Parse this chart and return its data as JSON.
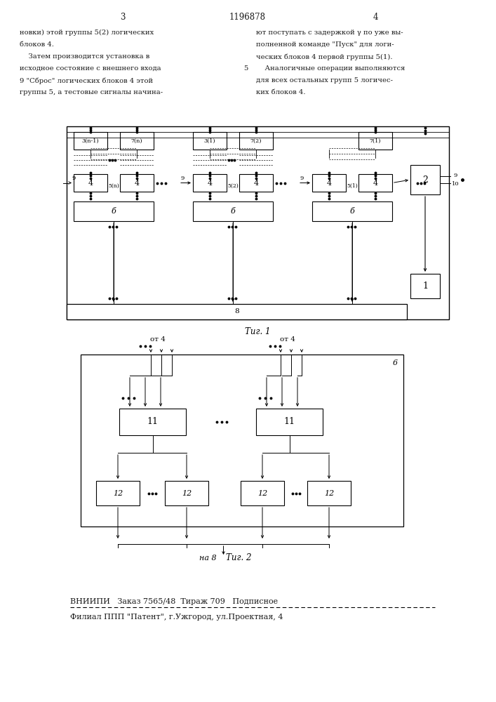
{
  "bg_color": "#ffffff",
  "text_color": "#1a1a1a",
  "title_patent": "1196878",
  "page_left": "3",
  "page_right": "4",
  "text_left_lines": [
    "новки) этой группы 5(2) логических",
    "блоков 4.",
    "    Затем производится установка в",
    "исходное состояние с внешнего входа",
    "9 \"Сброс\" логических блоков 4 этой",
    "группы 5, а тестовые сигналы начина-"
  ],
  "text_right_lines": [
    "ют поступать с задержкой γ по уже вы-",
    "полненной команде \"Пуск\" для логи-",
    "ческих блоков 4 первой группы 5(1).",
    "    Аналогичные операции выполняются",
    "для всех остальных групп 5 логичес-",
    "ких блоков 4."
  ],
  "fig1_label": "Τиг. 1",
  "fig2_label": "Τиг. 2",
  "footer_line1": "ВНИИПИ   Заказ 7565/48  Тираж 709   Подписное",
  "footer_line2": "Филиал ППП \"Патент\", г.Ужгород, ул.Проектная, 4"
}
